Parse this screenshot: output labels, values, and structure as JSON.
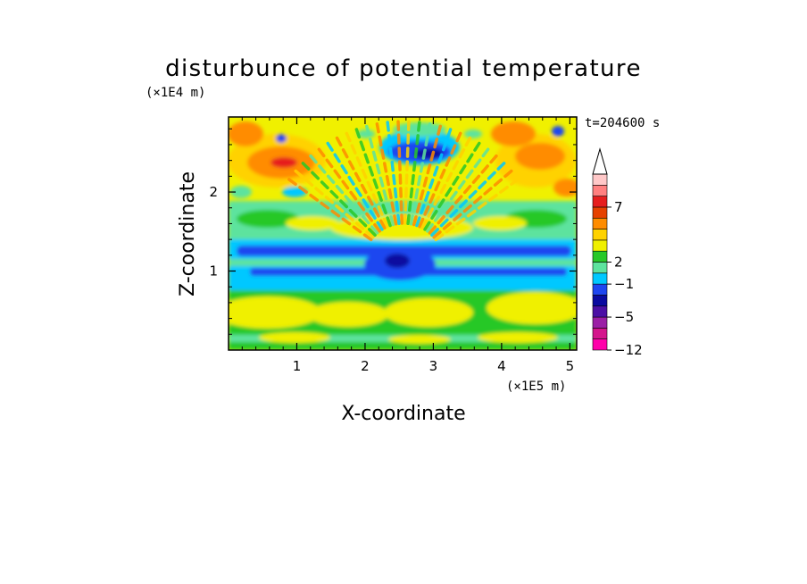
{
  "chart_data": {
    "type": "heatmap",
    "title": "disturbunce of potential temperature",
    "xlabel": "X-coordinate",
    "ylabel": "Z-coordinate",
    "x_unit": "(×1E5 m)",
    "y_unit": "(×1E4 m)",
    "time_label": "t=204600 s",
    "xlim": [
      0,
      5.1
    ],
    "ylim": [
      0,
      2.95
    ],
    "x_ticks": [
      1,
      2,
      3,
      4,
      5
    ],
    "y_ticks": [
      1,
      2
    ],
    "x_tick_labels": [
      "1",
      "2",
      "3",
      "4",
      "5"
    ],
    "y_tick_labels": [
      "1",
      "2"
    ],
    "colorbar": {
      "tick_labels": [
        "7",
        "2",
        "−1",
        "−5",
        "−12"
      ],
      "extend": "max",
      "colors": [
        "#ff00aa",
        "#d4148c",
        "#9b1fa6",
        "#4b0fa5",
        "#0a0aa0",
        "#1e46f0",
        "#00c8ff",
        "#5de39e",
        "#28c828",
        "#f0f000",
        "#ffd200",
        "#ff8c00",
        "#e64100",
        "#e61e1e",
        "#ff8080",
        "#ffc8c8"
      ]
    },
    "grid": false
  }
}
